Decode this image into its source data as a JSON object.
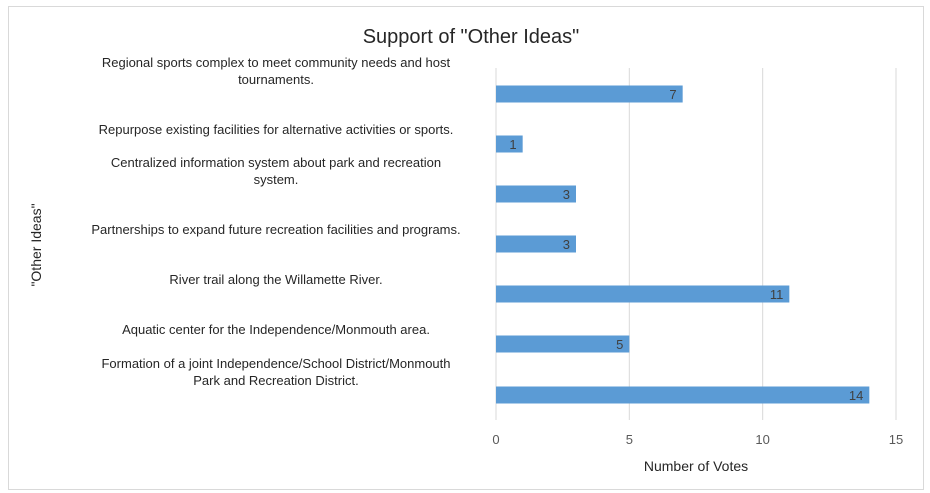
{
  "chart_data": {
    "type": "bar",
    "orientation": "horizontal",
    "title": "Support of \"Other Ideas\"",
    "xlabel": "Number of Votes",
    "ylabel": "\"Other Ideas\"",
    "xlim": [
      0,
      15
    ],
    "xticks": [
      0,
      5,
      10,
      15
    ],
    "grid": true,
    "legend": "none",
    "bar_color": "#5b9bd5",
    "categories": [
      [
        "Regional sports complex to meet community needs and host",
        "tournaments."
      ],
      [
        "Repurpose existing facilities for alternative activities or sports."
      ],
      [
        "Centralized information system about park and recreation",
        "system."
      ],
      [
        "Partnerships to expand future recreation facilities and programs."
      ],
      [
        "River trail along the Willamette River."
      ],
      [
        "Aquatic center for the Independence/Monmouth area."
      ],
      [
        "Formation of a joint Independence/School District/Monmouth",
        "Park and Recreation District."
      ]
    ],
    "values": [
      7,
      1,
      3,
      3,
      11,
      5,
      14
    ]
  }
}
